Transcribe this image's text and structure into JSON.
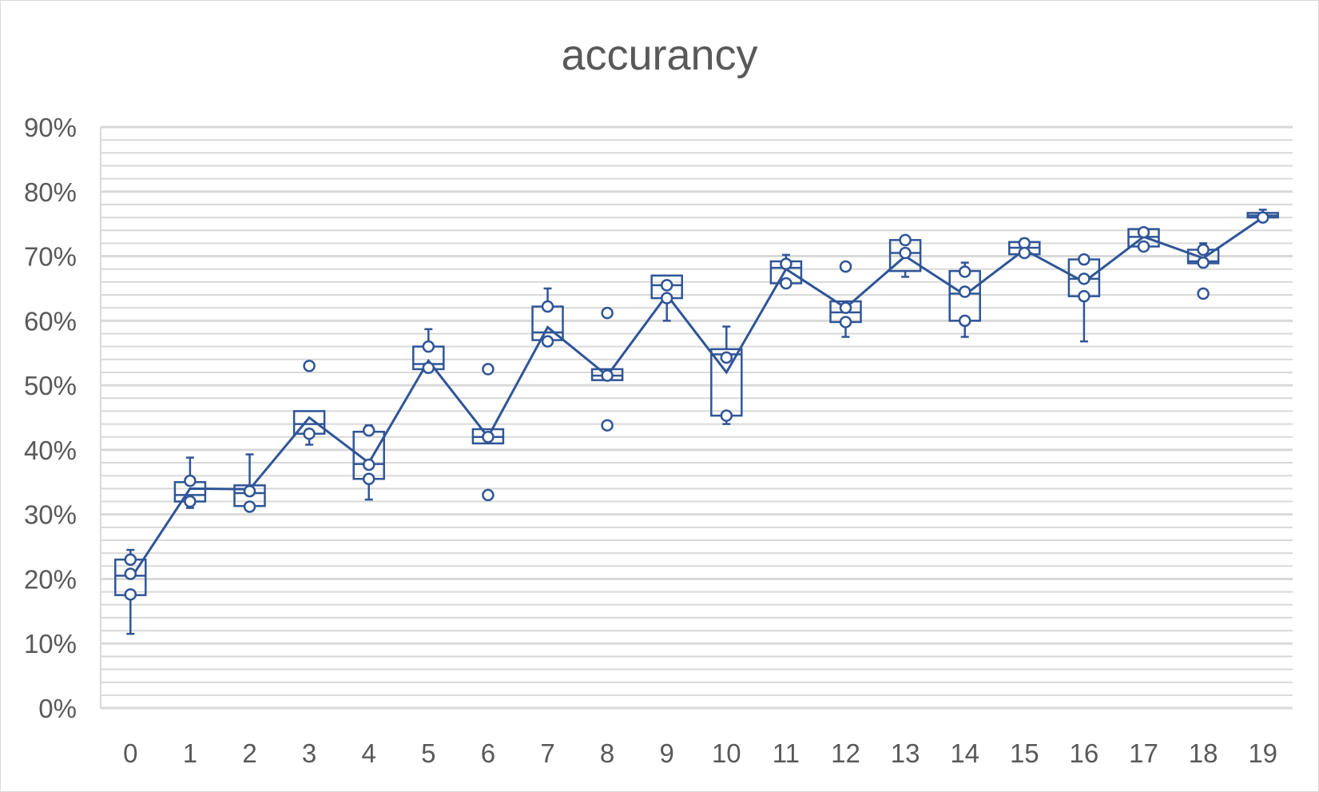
{
  "chart_data": {
    "type": "box",
    "title": "accurancy",
    "xlabel": "",
    "ylabel": "",
    "categories": [
      "0",
      "1",
      "2",
      "3",
      "4",
      "5",
      "6",
      "7",
      "8",
      "9",
      "10",
      "11",
      "12",
      "13",
      "14",
      "15",
      "16",
      "17",
      "18",
      "19"
    ],
    "ylim": [
      0,
      0.9
    ],
    "y_tick_labels": [
      "0%",
      "10%",
      "20%",
      "30%",
      "40%",
      "50%",
      "60%",
      "70%",
      "80%",
      "90%"
    ],
    "y_major_step": 0.1,
    "y_minor_step": 0.02,
    "grid": true,
    "legend": "none",
    "colors": {
      "series": "#2f5597",
      "grid": "#d9d9d9",
      "text": "#595959"
    },
    "boxes": [
      {
        "whisker_low": 0.115,
        "q1": 0.175,
        "median": 0.205,
        "q3": 0.23,
        "whisker_high": 0.245,
        "mean": 0.2,
        "points": [
          0.23,
          0.208,
          0.176
        ]
      },
      {
        "whisker_low": 0.31,
        "q1": 0.32,
        "median": 0.33,
        "q3": 0.35,
        "whisker_high": 0.388,
        "mean": 0.34,
        "points": [
          0.352,
          0.32
        ]
      },
      {
        "whisker_low": 0.31,
        "q1": 0.313,
        "median": 0.333,
        "q3": 0.345,
        "whisker_high": 0.393,
        "mean": 0.339,
        "points": [
          0.336,
          0.312
        ]
      },
      {
        "whisker_low": 0.408,
        "q1": 0.425,
        "median": 0.44,
        "q3": 0.46,
        "whisker_high": 0.46,
        "mean": 0.45,
        "points": [
          0.53,
          0.425
        ]
      },
      {
        "whisker_low": 0.323,
        "q1": 0.355,
        "median": 0.378,
        "q3": 0.428,
        "whisker_high": 0.438,
        "mean": 0.38,
        "points": [
          0.43,
          0.377,
          0.355
        ]
      },
      {
        "whisker_low": 0.525,
        "q1": 0.525,
        "median": 0.533,
        "q3": 0.56,
        "whisker_high": 0.587,
        "mean": 0.538,
        "points": [
          0.56,
          0.527
        ]
      },
      {
        "whisker_low": 0.41,
        "q1": 0.41,
        "median": 0.42,
        "q3": 0.432,
        "whisker_high": 0.432,
        "mean": 0.42,
        "points": [
          0.525,
          0.42,
          0.33
        ]
      },
      {
        "whisker_low": 0.567,
        "q1": 0.57,
        "median": 0.582,
        "q3": 0.622,
        "whisker_high": 0.65,
        "mean": 0.59,
        "points": [
          0.622,
          0.568
        ]
      },
      {
        "whisker_low": 0.508,
        "q1": 0.508,
        "median": 0.515,
        "q3": 0.525,
        "whisker_high": 0.525,
        "mean": 0.515,
        "points": [
          0.612,
          0.515,
          0.438
        ]
      },
      {
        "whisker_low": 0.6,
        "q1": 0.635,
        "median": 0.655,
        "q3": 0.67,
        "whisker_high": 0.67,
        "mean": 0.64,
        "points": [
          0.655,
          0.635
        ]
      },
      {
        "whisker_low": 0.44,
        "q1": 0.453,
        "median": 0.548,
        "q3": 0.556,
        "whisker_high": 0.591,
        "mean": 0.52,
        "points": [
          0.543,
          0.453
        ]
      },
      {
        "whisker_low": 0.655,
        "q1": 0.658,
        "median": 0.682,
        "q3": 0.692,
        "whisker_high": 0.702,
        "mean": 0.68,
        "points": [
          0.688,
          0.658
        ]
      },
      {
        "whisker_low": 0.575,
        "q1": 0.598,
        "median": 0.613,
        "q3": 0.63,
        "whisker_high": 0.63,
        "mean": 0.62,
        "points": [
          0.684,
          0.62,
          0.598
        ]
      },
      {
        "whisker_low": 0.668,
        "q1": 0.677,
        "median": 0.705,
        "q3": 0.725,
        "whisker_high": 0.725,
        "mean": 0.7,
        "points": [
          0.725,
          0.705
        ]
      },
      {
        "whisker_low": 0.575,
        "q1": 0.6,
        "median": 0.642,
        "q3": 0.677,
        "whisker_high": 0.69,
        "mean": 0.64,
        "points": [
          0.676,
          0.645,
          0.6
        ]
      },
      {
        "whisker_low": 0.7,
        "q1": 0.703,
        "median": 0.713,
        "q3": 0.722,
        "whisker_high": 0.727,
        "mean": 0.71,
        "points": [
          0.72,
          0.705
        ]
      },
      {
        "whisker_low": 0.568,
        "q1": 0.638,
        "median": 0.665,
        "q3": 0.695,
        "whisker_high": 0.695,
        "mean": 0.66,
        "points": [
          0.695,
          0.665,
          0.638
        ]
      },
      {
        "whisker_low": 0.715,
        "q1": 0.715,
        "median": 0.73,
        "q3": 0.742,
        "whisker_high": 0.742,
        "mean": 0.73,
        "points": [
          0.737,
          0.715
        ]
      },
      {
        "whisker_low": 0.689,
        "q1": 0.689,
        "median": 0.692,
        "q3": 0.71,
        "whisker_high": 0.72,
        "mean": 0.697,
        "points": [
          0.71,
          0.69,
          0.642
        ]
      },
      {
        "whisker_low": 0.758,
        "q1": 0.76,
        "median": 0.763,
        "q3": 0.767,
        "whisker_high": 0.772,
        "mean": 0.76,
        "points": [
          0.76
        ]
      }
    ]
  }
}
